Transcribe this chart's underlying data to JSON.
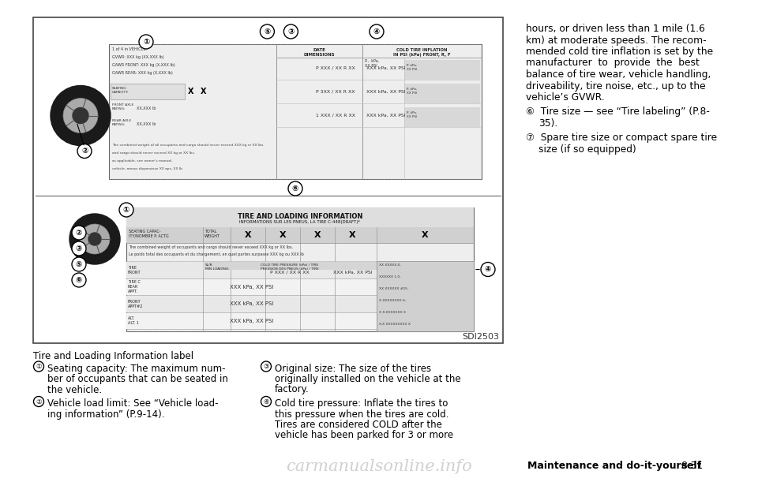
{
  "bg_color": "#ffffff",
  "right_col_lines": [
    "hours, or driven less than 1 mile (1.6",
    "km) at moderate speeds. The recom-",
    "mended cold tire inflation is set by the",
    "manufacturer  to  provide  the  best",
    "balance of tire wear, vehicle handling,",
    "driveability, tire noise, etc., up to the",
    "vehicle’s GVWR."
  ],
  "right_item5_line1": "⑥  Tire size — see “Tire labeling” (P.8-",
  "right_item5_line2": "35).",
  "right_item6_line1": "⑦  Spare tire size or compact spare tire",
  "right_item6_line2": "size (if so equipped)",
  "bottom_title": "Tire and Loading Information label",
  "bottom_left_1_num": "①",
  "bottom_left_1_text": "Seating capacity: The maximum num-\nber of occupants that can be seated in\nthe vehicle.",
  "bottom_left_2_num": "②",
  "bottom_left_2_text": "Vehicle load limit: See “Vehicle load-\ning information” (P.9-14).",
  "bottom_right_3_num": "③",
  "bottom_right_3_text": "Original size: The size of the tires\noriginally installed on the vehicle at the\nfactory.",
  "bottom_right_4_num": "④",
  "bottom_right_4_text": "Cold tire pressure: Inflate the tires to\nthis pressure when the tires are cold.\nTires are considered COLD after the\nvehicle has been parked for 3 or more",
  "footer_bold": "Maintenance and do-it-yourself",
  "footer_num": "8-31",
  "watermark": "carmanualsonline.info",
  "sdi": "SDI2503"
}
